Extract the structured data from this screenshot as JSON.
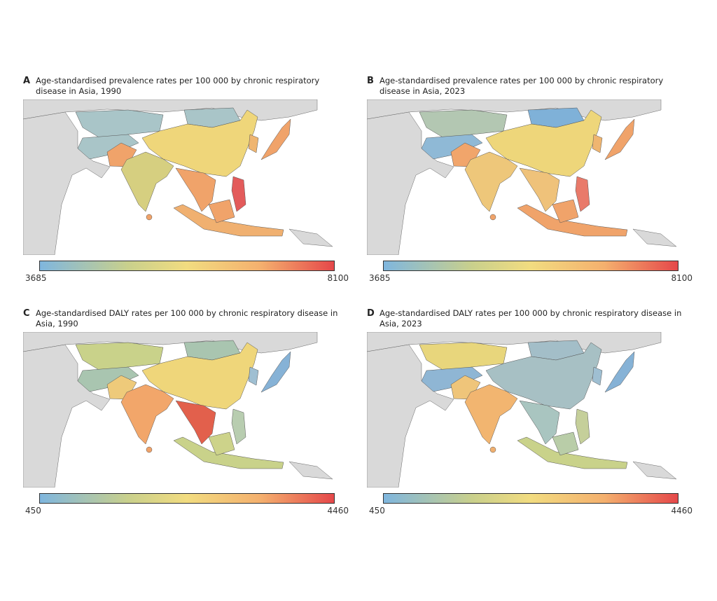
{
  "panels": [
    {
      "letter": "A",
      "title": "Age-standardised prevalence rates per 100 000 by chronic respiratory disease in Asia, 1990",
      "scale_min": "3685",
      "scale_max": "8100",
      "colors": {
        "kazakhstan": "#a9c5c8",
        "mongolia": "#a9c5c8",
        "central": "#a9c5c8",
        "china": "#efd67a",
        "india": "#d6cf80",
        "pakistan": "#f0a36a",
        "seasia": "#f0a36a",
        "philippines": "#e35b5b",
        "indonesia": "#f0b070",
        "borneo": "#f0a36a",
        "japan": "#f0a36a",
        "korea": "#efb570",
        "srilanka": "#f0a36a"
      }
    },
    {
      "letter": "B",
      "title": "Age-standardised prevalence rates per 100 000 by chronic respiratory disease in Asia, 2023",
      "scale_min": "3685",
      "scale_max": "8100",
      "colors": {
        "kazakhstan": "#b3c7b2",
        "mongolia": "#7fb1d8",
        "central": "#8fb9d6",
        "china": "#eed67a",
        "india": "#eec77a",
        "pakistan": "#f1a56b",
        "seasia": "#efc27a",
        "philippines": "#e97a6a",
        "indonesia": "#f0a36a",
        "borneo": "#f0a36a",
        "japan": "#f0a36a",
        "korea": "#efb570",
        "srilanka": "#f0a36a"
      }
    },
    {
      "letter": "C",
      "title": "Age-standardised DALY rates per 100 000 by chronic respiratory disease in Asia, 1990",
      "scale_min": "450",
      "scale_max": "4460",
      "colors": {
        "kazakhstan": "#c9d28a",
        "mongolia": "#a9c5b0",
        "central": "#a9c5b0",
        "china": "#efd67a",
        "india": "#f2a66a",
        "pakistan": "#eeca7a",
        "seasia": "#e2604c",
        "philippines": "#b8cdb0",
        "indonesia": "#c9d28a",
        "borneo": "#cdd38a",
        "japan": "#86b2d6",
        "korea": "#9fbfd2",
        "srilanka": "#f0a36a"
      }
    },
    {
      "letter": "D",
      "title": "Age-standardised DALY rates per 100 000 by chronic respiratory disease in Asia, 2023",
      "scale_min": "450",
      "scale_max": "4460",
      "colors": {
        "kazakhstan": "#e8d67c",
        "mongolia": "#a3bec8",
        "central": "#8fb6d4",
        "china": "#a7c0c4",
        "india": "#f2b570",
        "pakistan": "#efc57a",
        "seasia": "#a9c5c0",
        "philippines": "#c5cf9a",
        "indonesia": "#c9d28a",
        "borneo": "#b9cda8",
        "japan": "#86b2d6",
        "korea": "#9fbfd2",
        "srilanka": "#f0b070"
      }
    }
  ],
  "colorscale": [
    "#7fb6de",
    "#f2dc80",
    "#e5484a"
  ],
  "no_data_color": "#d9d9d9"
}
